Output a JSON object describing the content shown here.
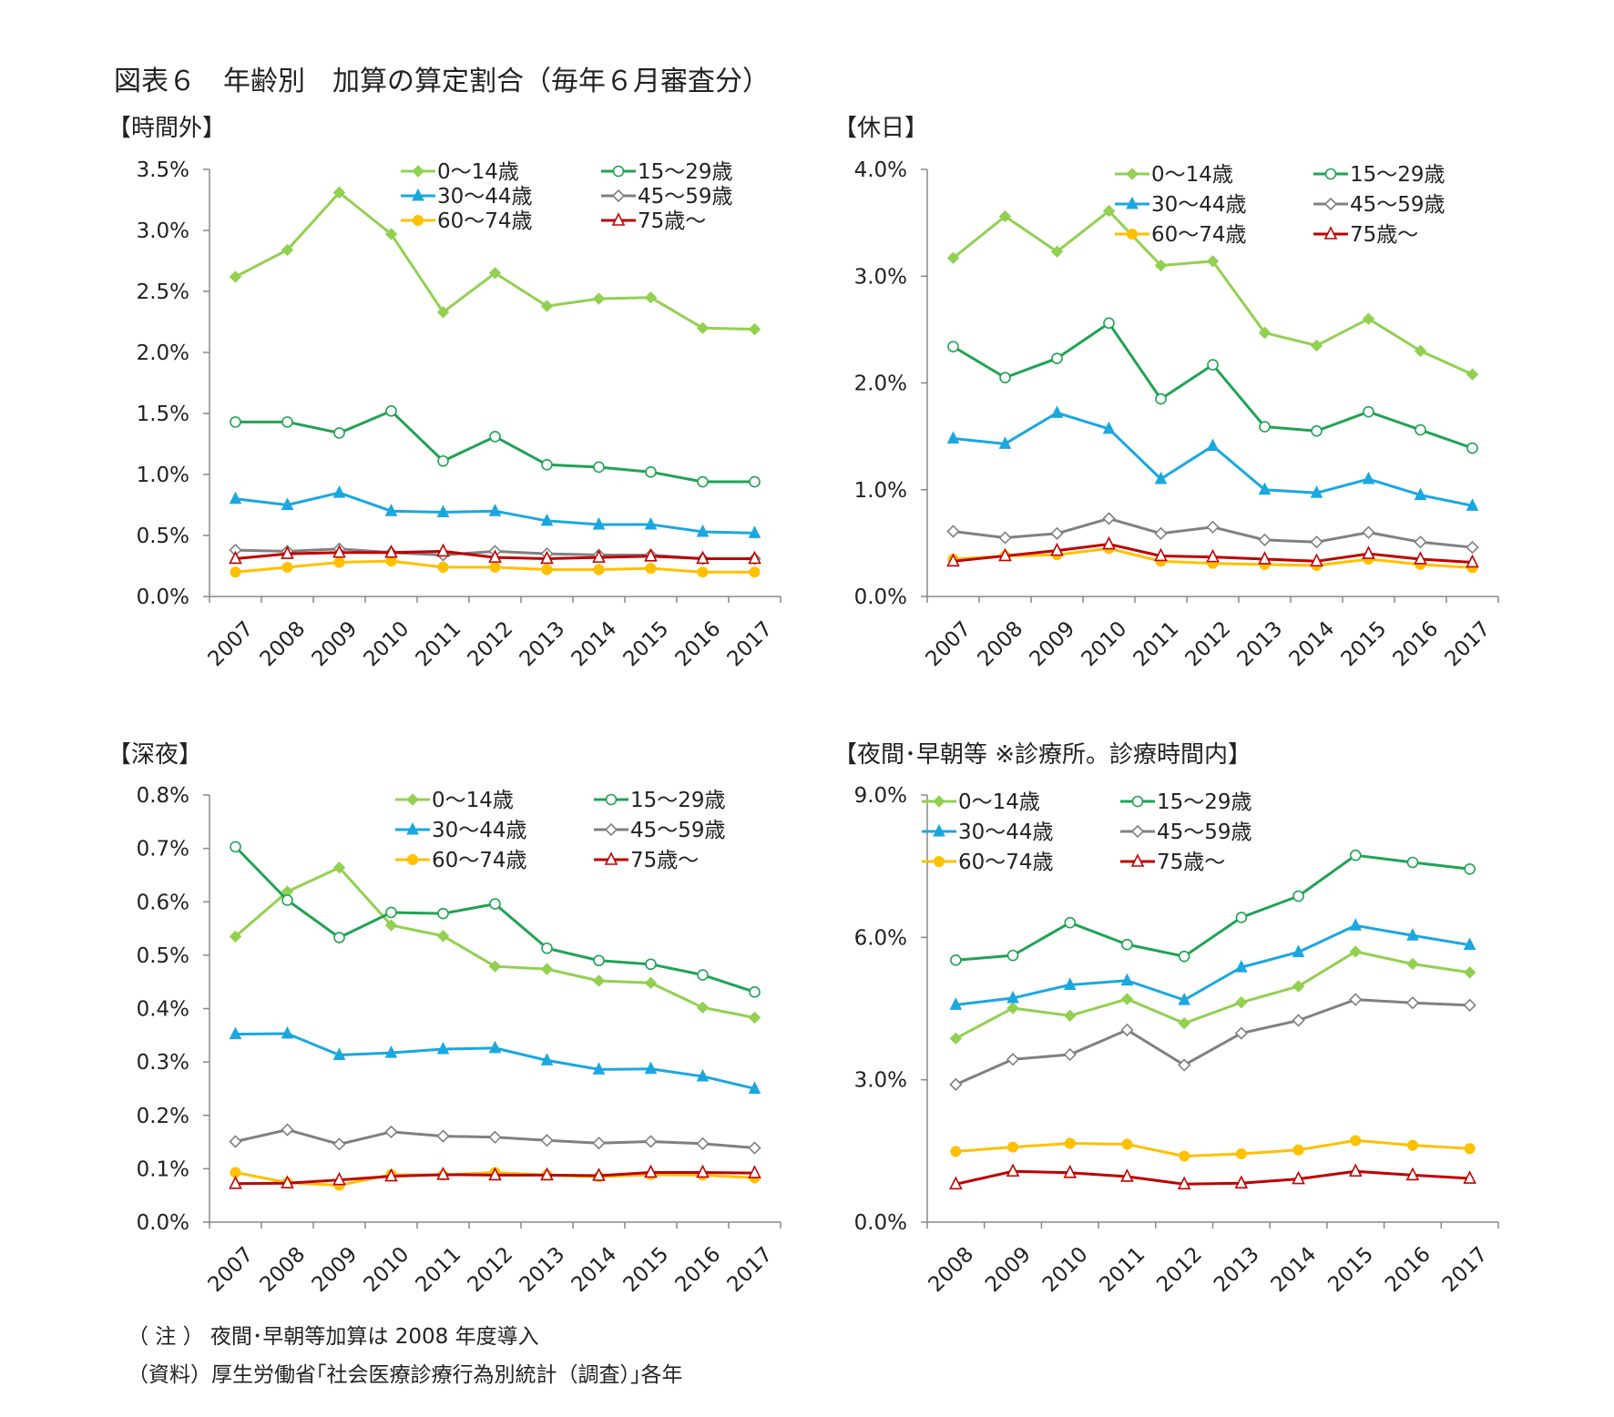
{
  "title": "図表６　年齢別　加算の算定割合（毎年６月審査分）",
  "notes": {
    "note1": "（ 注 ） 夜間･早朝等加算は 2008 年度導入",
    "note2": "（資料）厚生労働省｢社会医療診療行為別統計（調査）｣各年"
  },
  "colors": {
    "0-14": "#92D050",
    "15-29": "#1FA353",
    "30-44": "#1AA7E0",
    "45-59": "#808080",
    "60-74": "#FFC000",
    "75+": "#C00000"
  },
  "chart_data": [
    {
      "type": "line",
      "title": "【時間外】",
      "x": [
        "2007",
        "2008",
        "2009",
        "2010",
        "2011",
        "2012",
        "2013",
        "2014",
        "2015",
        "2016",
        "2017"
      ],
      "ylim": [
        0,
        3.5
      ],
      "ystep": 0.5,
      "ydecimals": 1,
      "series": [
        {
          "name": "0～14歳",
          "key": "0-14",
          "marker": "diamond-filled",
          "values": [
            2.62,
            2.84,
            3.31,
            2.97,
            2.33,
            2.65,
            2.38,
            2.44,
            2.45,
            2.2,
            2.19
          ]
        },
        {
          "name": "15～29歳",
          "key": "15-29",
          "marker": "circle-open",
          "values": [
            1.43,
            1.43,
            1.34,
            1.52,
            1.11,
            1.31,
            1.08,
            1.06,
            1.02,
            0.94,
            0.94
          ]
        },
        {
          "name": "30～44歳",
          "key": "30-44",
          "marker": "triangle-filled",
          "values": [
            0.8,
            0.75,
            0.85,
            0.7,
            0.69,
            0.7,
            0.62,
            0.59,
            0.59,
            0.53,
            0.52
          ]
        },
        {
          "name": "45～59歳",
          "key": "45-59",
          "marker": "diamond-open",
          "values": [
            0.38,
            0.37,
            0.39,
            0.36,
            0.34,
            0.37,
            0.35,
            0.34,
            0.34,
            0.31,
            0.31
          ]
        },
        {
          "name": "60～74歳",
          "key": "60-74",
          "marker": "circle-filled",
          "values": [
            0.2,
            0.24,
            0.28,
            0.29,
            0.24,
            0.24,
            0.22,
            0.22,
            0.23,
            0.2,
            0.2
          ]
        },
        {
          "name": "75歳～",
          "key": "75+",
          "marker": "triangle-open",
          "values": [
            0.31,
            0.35,
            0.36,
            0.36,
            0.37,
            0.32,
            0.31,
            0.32,
            0.33,
            0.31,
            0.31
          ]
        }
      ]
    },
    {
      "type": "line",
      "title": "【休日】",
      "x": [
        "2007",
        "2008",
        "2009",
        "2010",
        "2011",
        "2012",
        "2013",
        "2014",
        "2015",
        "2016",
        "2017"
      ],
      "ylim": [
        0,
        4.0
      ],
      "ystep": 1.0,
      "ydecimals": 1,
      "series": [
        {
          "name": "0～14歳",
          "key": "0-14",
          "marker": "diamond-filled",
          "values": [
            3.17,
            3.56,
            3.23,
            3.61,
            3.1,
            3.14,
            2.47,
            2.35,
            2.6,
            2.3,
            2.08
          ]
        },
        {
          "name": "15～29歳",
          "key": "15-29",
          "marker": "circle-open",
          "values": [
            2.34,
            2.05,
            2.23,
            2.56,
            1.85,
            2.17,
            1.59,
            1.55,
            1.73,
            1.56,
            1.39
          ]
        },
        {
          "name": "30～44歳",
          "key": "30-44",
          "marker": "triangle-filled",
          "values": [
            1.48,
            1.43,
            1.72,
            1.57,
            1.1,
            1.41,
            1.0,
            0.97,
            1.1,
            0.95,
            0.85
          ]
        },
        {
          "name": "45～59歳",
          "key": "45-59",
          "marker": "diamond-open",
          "values": [
            0.61,
            0.55,
            0.59,
            0.73,
            0.59,
            0.65,
            0.53,
            0.51,
            0.6,
            0.51,
            0.46
          ]
        },
        {
          "name": "60～74歳",
          "key": "60-74",
          "marker": "circle-filled",
          "values": [
            0.35,
            0.38,
            0.39,
            0.45,
            0.33,
            0.31,
            0.3,
            0.29,
            0.35,
            0.3,
            0.27
          ]
        },
        {
          "name": "75歳～",
          "key": "75+",
          "marker": "triangle-open",
          "values": [
            0.33,
            0.38,
            0.43,
            0.49,
            0.38,
            0.37,
            0.35,
            0.33,
            0.4,
            0.35,
            0.32
          ]
        }
      ]
    },
    {
      "type": "line",
      "title": "【深夜】",
      "x": [
        "2007",
        "2008",
        "2009",
        "2010",
        "2011",
        "2012",
        "2013",
        "2014",
        "2015",
        "2016",
        "2017"
      ],
      "ylim": [
        0,
        0.8
      ],
      "ystep": 0.1,
      "ydecimals": 1,
      "series": [
        {
          "name": "0～14歳",
          "key": "0-14",
          "marker": "diamond-filled",
          "values": [
            0.535,
            0.619,
            0.664,
            0.556,
            0.536,
            0.479,
            0.474,
            0.452,
            0.448,
            0.402,
            0.383
          ]
        },
        {
          "name": "15～29歳",
          "key": "15-29",
          "marker": "circle-open",
          "values": [
            0.703,
            0.603,
            0.533,
            0.58,
            0.578,
            0.596,
            0.513,
            0.49,
            0.483,
            0.463,
            0.431
          ]
        },
        {
          "name": "30～44歳",
          "key": "30-44",
          "marker": "triangle-filled",
          "values": [
            0.352,
            0.353,
            0.313,
            0.317,
            0.324,
            0.326,
            0.303,
            0.286,
            0.287,
            0.273,
            0.25
          ]
        },
        {
          "name": "45～59歳",
          "key": "45-59",
          "marker": "diamond-open",
          "values": [
            0.151,
            0.173,
            0.146,
            0.169,
            0.161,
            0.159,
            0.153,
            0.148,
            0.151,
            0.147,
            0.139
          ]
        },
        {
          "name": "60～74歳",
          "key": "60-74",
          "marker": "circle-filled",
          "values": [
            0.093,
            0.074,
            0.069,
            0.089,
            0.088,
            0.093,
            0.088,
            0.085,
            0.089,
            0.088,
            0.083
          ]
        },
        {
          "name": "75歳～",
          "key": "75+",
          "marker": "triangle-open",
          "values": [
            0.072,
            0.073,
            0.079,
            0.086,
            0.089,
            0.088,
            0.088,
            0.087,
            0.093,
            0.093,
            0.092
          ]
        }
      ]
    },
    {
      "type": "line",
      "title": "【夜間･早朝等 ※診療所。診療時間内】",
      "x": [
        "2008",
        "2009",
        "2010",
        "2011",
        "2012",
        "2013",
        "2014",
        "2015",
        "2016",
        "2017"
      ],
      "ylim": [
        0,
        9.0
      ],
      "ystep": 3.0,
      "ydecimals": 1,
      "series": [
        {
          "name": "0～14歳",
          "key": "0-14",
          "marker": "diamond-filled",
          "values": [
            3.87,
            4.51,
            4.35,
            4.7,
            4.19,
            4.63,
            4.97,
            5.7,
            5.44,
            5.26
          ]
        },
        {
          "name": "15～29歳",
          "key": "15-29",
          "marker": "circle-open",
          "values": [
            5.52,
            5.62,
            6.31,
            5.85,
            5.6,
            6.42,
            6.87,
            7.73,
            7.58,
            7.44
          ]
        },
        {
          "name": "30～44歳",
          "key": "30-44",
          "marker": "triangle-filled",
          "values": [
            4.58,
            4.72,
            5.0,
            5.09,
            4.68,
            5.37,
            5.69,
            6.25,
            6.04,
            5.84
          ]
        },
        {
          "name": "45～59歳",
          "key": "45-59",
          "marker": "diamond-open",
          "values": [
            2.9,
            3.43,
            3.53,
            4.05,
            3.31,
            3.98,
            4.25,
            4.69,
            4.62,
            4.57
          ]
        },
        {
          "name": "60～74歳",
          "key": "60-74",
          "marker": "circle-filled",
          "values": [
            1.49,
            1.58,
            1.66,
            1.64,
            1.39,
            1.44,
            1.52,
            1.72,
            1.62,
            1.55
          ]
        },
        {
          "name": "75歳～",
          "key": "75+",
          "marker": "triangle-open",
          "values": [
            0.8,
            1.07,
            1.04,
            0.96,
            0.8,
            0.82,
            0.91,
            1.07,
            0.99,
            0.92
          ]
        }
      ]
    }
  ]
}
